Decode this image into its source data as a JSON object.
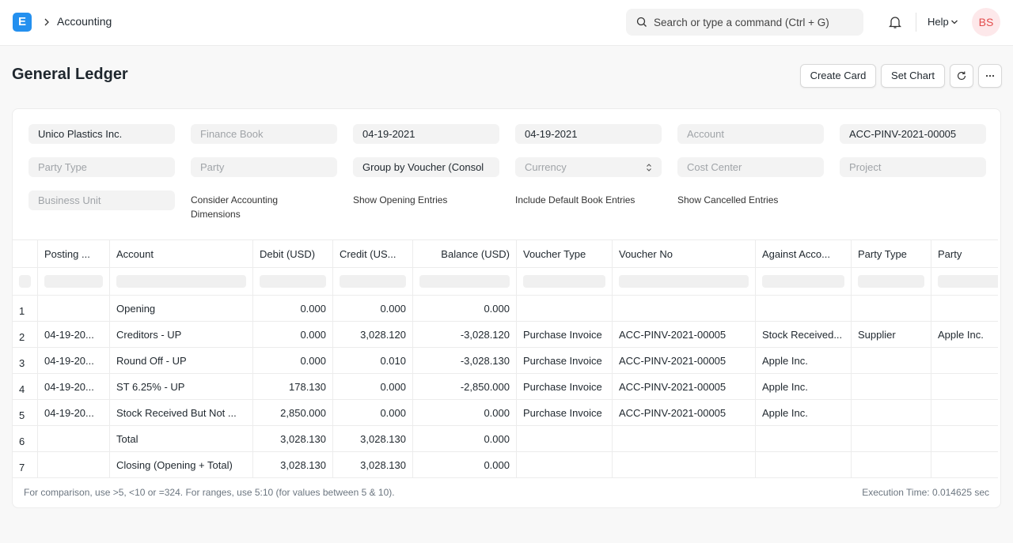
{
  "navbar": {
    "logo": "E",
    "breadcrumb": "Accounting",
    "search_placeholder": "Search or type a command (Ctrl + G)",
    "help": "Help",
    "avatar": "BS"
  },
  "page_header": {
    "title": "General Ledger",
    "buttons": [
      "Create Card",
      "Set Chart"
    ]
  },
  "filters": {
    "inputs": [
      {
        "value": "Unico Plastics Inc."
      },
      {
        "placeholder": "Finance Book"
      },
      {
        "value": "04-19-2021"
      },
      {
        "value": "04-19-2021"
      },
      {
        "placeholder": "Account"
      },
      {
        "value": "ACC-PINV-2021-00005"
      },
      {
        "placeholder": "Party Type"
      },
      {
        "placeholder": "Party"
      },
      {
        "value": "Group by Voucher (Consol"
      },
      {
        "placeholder": "Currency",
        "select": true
      },
      {
        "placeholder": "Cost Center"
      },
      {
        "placeholder": "Project"
      },
      {
        "placeholder": "Business Unit"
      }
    ],
    "checkboxes": [
      "Consider Accounting Dimensions",
      "Show Opening Entries",
      "Include Default Book Entries",
      "Show Cancelled Entries"
    ]
  },
  "table": {
    "columns": [
      {
        "label": "Posting ...",
        "align": "left"
      },
      {
        "label": "Account",
        "align": "left"
      },
      {
        "label": "Debit (USD)",
        "align": "right"
      },
      {
        "label": "Credit (US...",
        "align": "right"
      },
      {
        "label": "Balance (USD)",
        "align": "right",
        "header_align": "right"
      },
      {
        "label": "Voucher Type",
        "align": "left"
      },
      {
        "label": "Voucher No",
        "align": "left"
      },
      {
        "label": "Against Acco...",
        "align": "left"
      },
      {
        "label": "Party Type",
        "align": "left"
      },
      {
        "label": "Party",
        "align": "left"
      }
    ],
    "rows": [
      {
        "index": "1",
        "cells": [
          null,
          "Opening",
          "0.000",
          "0.000",
          "0.000",
          null,
          null,
          null,
          null,
          null
        ]
      },
      {
        "index": "2",
        "cells": [
          "04-19-20...",
          "Creditors - UP",
          "0.000",
          "3,028.120",
          "-3,028.120",
          "Purchase Invoice",
          "ACC-PINV-2021-00005",
          "Stock Received...",
          "Supplier",
          "Apple Inc."
        ]
      },
      {
        "index": "3",
        "cells": [
          "04-19-20...",
          "Round Off - UP",
          "0.000",
          "0.010",
          "-3,028.130",
          "Purchase Invoice",
          "ACC-PINV-2021-00005",
          "Apple Inc.",
          null,
          null
        ]
      },
      {
        "index": "4",
        "cells": [
          "04-19-20...",
          "ST 6.25% - UP",
          "178.130",
          "0.000",
          "-2,850.000",
          "Purchase Invoice",
          "ACC-PINV-2021-00005",
          "Apple Inc.",
          null,
          null
        ]
      },
      {
        "index": "5",
        "cells": [
          "04-19-20...",
          "Stock Received But Not ...",
          "2,850.000",
          "0.000",
          "0.000",
          "Purchase Invoice",
          "ACC-PINV-2021-00005",
          "Apple Inc.",
          null,
          null
        ]
      },
      {
        "index": "6",
        "cells": [
          null,
          "Total",
          "3,028.130",
          "3,028.130",
          "0.000",
          null,
          null,
          null,
          null,
          null
        ]
      },
      {
        "index": "7",
        "cells": [
          null,
          "Closing (Opening + Total)",
          "3,028.130",
          "3,028.130",
          "0.000",
          null,
          null,
          null,
          null,
          null
        ]
      }
    ]
  },
  "footer": {
    "hint": "For comparison, use >5, <10 or =324. For ranges, use 5:10 (for values between 5 & 10).",
    "execution_time": "Execution Time: 0.014625 sec"
  }
}
